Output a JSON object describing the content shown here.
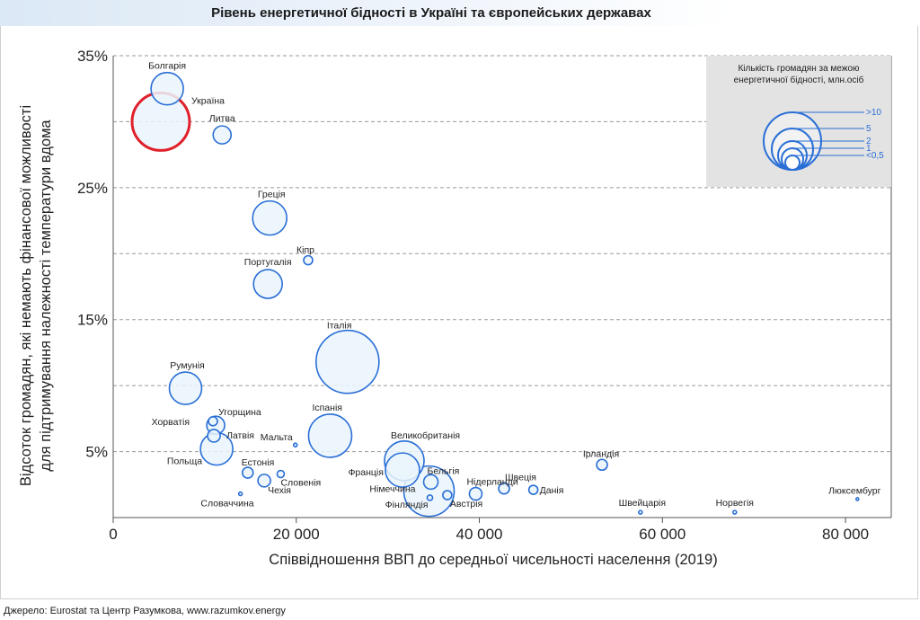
{
  "header": {
    "title": "Рівень енергетичної бідності в Україні та європейських державах"
  },
  "footer": {
    "source": "Джерело: Eurostat та Центр Разумкова, www.razumkov.energy"
  },
  "chart_data": {
    "type": "scatter",
    "title": "Рівень енергетичної бідності в Україні та європейських державах",
    "xlabel": "Співвідношення ВВП до середньої чисельності населення (2019)",
    "ylabel_lines": [
      "Відсоток громадян, які немають фінансової можливості",
      "для підтримування належності температури вдома"
    ],
    "xlim": [
      0,
      85000
    ],
    "ylim": [
      0,
      35
    ],
    "x_ticks": [
      0,
      20000,
      40000,
      60000,
      80000
    ],
    "x_tick_labels": [
      "0",
      "20 000",
      "40 000",
      "60 000",
      "80 000"
    ],
    "y_ticks": [
      5,
      15,
      25,
      35
    ],
    "y_tick_labels": [
      "5%",
      "15%",
      "25%",
      "35%"
    ],
    "y_gridlines": [
      5,
      10,
      15,
      20,
      25,
      30,
      35
    ],
    "bubble_color": "#2a6fd6",
    "bubble_fill": "#eaf5fb",
    "highlight_color": "#e0202a",
    "points": [
      {
        "name": "Болгарія",
        "x": 5900,
        "y": 32.5,
        "r": 18
      },
      {
        "name": "Україна",
        "x": 5200,
        "y": 30.0,
        "r": 32,
        "highlight": true
      },
      {
        "name": "Литва",
        "x": 11900,
        "y": 29.0,
        "r": 10
      },
      {
        "name": "Греція",
        "x": 17100,
        "y": 22.7,
        "r": 19
      },
      {
        "name": "Кіпр",
        "x": 21300,
        "y": 19.5,
        "r": 5
      },
      {
        "name": "Португалія",
        "x": 16900,
        "y": 17.7,
        "r": 16
      },
      {
        "name": "Італія",
        "x": 25600,
        "y": 11.8,
        "r": 35
      },
      {
        "name": "Румунія",
        "x": 7900,
        "y": 9.8,
        "r": 18
      },
      {
        "name": "Угорщина",
        "x": 11200,
        "y": 7.0,
        "r": 10
      },
      {
        "name": "Хорватія",
        "x": 10900,
        "y": 7.3,
        "r": 5
      },
      {
        "name": "Латвія",
        "x": 11000,
        "y": 6.2,
        "r": 7
      },
      {
        "name": "Польща",
        "x": 11300,
        "y": 5.2,
        "r": 18
      },
      {
        "name": "Мальта",
        "x": 19900,
        "y": 5.5,
        "r": 2
      },
      {
        "name": "Іспанія",
        "x": 23700,
        "y": 6.2,
        "r": 24
      },
      {
        "name": "Великобританія",
        "x": 31800,
        "y": 4.3,
        "r": 22
      },
      {
        "name": "Франція",
        "x": 31600,
        "y": 3.6,
        "r": 19
      },
      {
        "name": "Естонія",
        "x": 14700,
        "y": 3.4,
        "r": 6
      },
      {
        "name": "Словенія",
        "x": 18300,
        "y": 3.3,
        "r": 4
      },
      {
        "name": "Чехія",
        "x": 16500,
        "y": 2.8,
        "r": 7
      },
      {
        "name": "Словаччина",
        "x": 13900,
        "y": 1.8,
        "r": 2
      },
      {
        "name": "Бельгія",
        "x": 34700,
        "y": 2.7,
        "r": 8
      },
      {
        "name": "Німеччина",
        "x": 34500,
        "y": 2.0,
        "r": 28
      },
      {
        "name": "Фінляндія",
        "x": 34600,
        "y": 1.5,
        "r": 3
      },
      {
        "name": "Австрія",
        "x": 36500,
        "y": 1.7,
        "r": 5
      },
      {
        "name": "Нідерланди",
        "x": 39600,
        "y": 1.8,
        "r": 7
      },
      {
        "name": "Швеція",
        "x": 42700,
        "y": 2.2,
        "r": 6
      },
      {
        "name": "Данія",
        "x": 45900,
        "y": 2.1,
        "r": 5
      },
      {
        "name": "Ірландія",
        "x": 53400,
        "y": 4.0,
        "r": 6
      },
      {
        "name": "Швейцарія",
        "x": 57600,
        "y": 0.4,
        "r": 2
      },
      {
        "name": "Норвегія",
        "x": 67900,
        "y": 0.4,
        "r": 2
      },
      {
        "name": "Люксембург",
        "x": 81300,
        "y": 1.4,
        "r": 1.5
      }
    ],
    "legend": {
      "title_lines": [
        "Кількість громадян за межою",
        "енергетичної бідності, млн.осіб"
      ],
      "placement": "top-right",
      "sizes": [
        {
          "label": ">10",
          "r": 32
        },
        {
          "label": "5",
          "r": 23
        },
        {
          "label": "2",
          "r": 16
        },
        {
          "label": "1",
          "r": 12
        },
        {
          "label": "<0,5",
          "r": 8
        }
      ]
    }
  }
}
